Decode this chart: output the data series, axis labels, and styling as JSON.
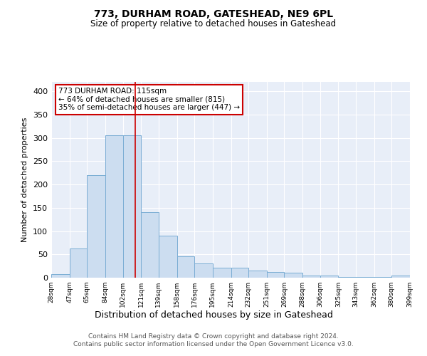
{
  "title1": "773, DURHAM ROAD, GATESHEAD, NE9 6PL",
  "title2": "Size of property relative to detached houses in Gateshead",
  "xlabel": "Distribution of detached houses by size in Gateshead",
  "ylabel": "Number of detached properties",
  "bar_color": "#ccddf0",
  "bar_edge_color": "#7aadd4",
  "background_color": "#e8eef8",
  "grid_color": "#ffffff",
  "vline_x": 115,
  "vline_color": "#cc0000",
  "annotation_lines": [
    "773 DURHAM ROAD: 115sqm",
    "← 64% of detached houses are smaller (815)",
    "35% of semi-detached houses are larger (447) →"
  ],
  "annotation_box_color": "#ffffff",
  "annotation_box_edge": "#cc0000",
  "bin_edges": [
    28,
    47,
    65,
    84,
    102,
    121,
    139,
    158,
    176,
    195,
    214,
    232,
    251,
    269,
    288,
    306,
    325,
    343,
    362,
    380,
    399
  ],
  "bin_heights": [
    8,
    63,
    220,
    305,
    305,
    140,
    90,
    46,
    31,
    22,
    22,
    15,
    12,
    10,
    5,
    4,
    2,
    2,
    2,
    4
  ],
  "footer_text": "Contains HM Land Registry data © Crown copyright and database right 2024.\nContains public sector information licensed under the Open Government Licence v3.0.",
  "ylim": [
    0,
    420
  ],
  "tick_labels": [
    "28sqm",
    "47sqm",
    "65sqm",
    "84sqm",
    "102sqm",
    "121sqm",
    "139sqm",
    "158sqm",
    "176sqm",
    "195sqm",
    "214sqm",
    "232sqm",
    "251sqm",
    "269sqm",
    "288sqm",
    "306sqm",
    "325sqm",
    "343sqm",
    "362sqm",
    "380sqm",
    "399sqm"
  ]
}
